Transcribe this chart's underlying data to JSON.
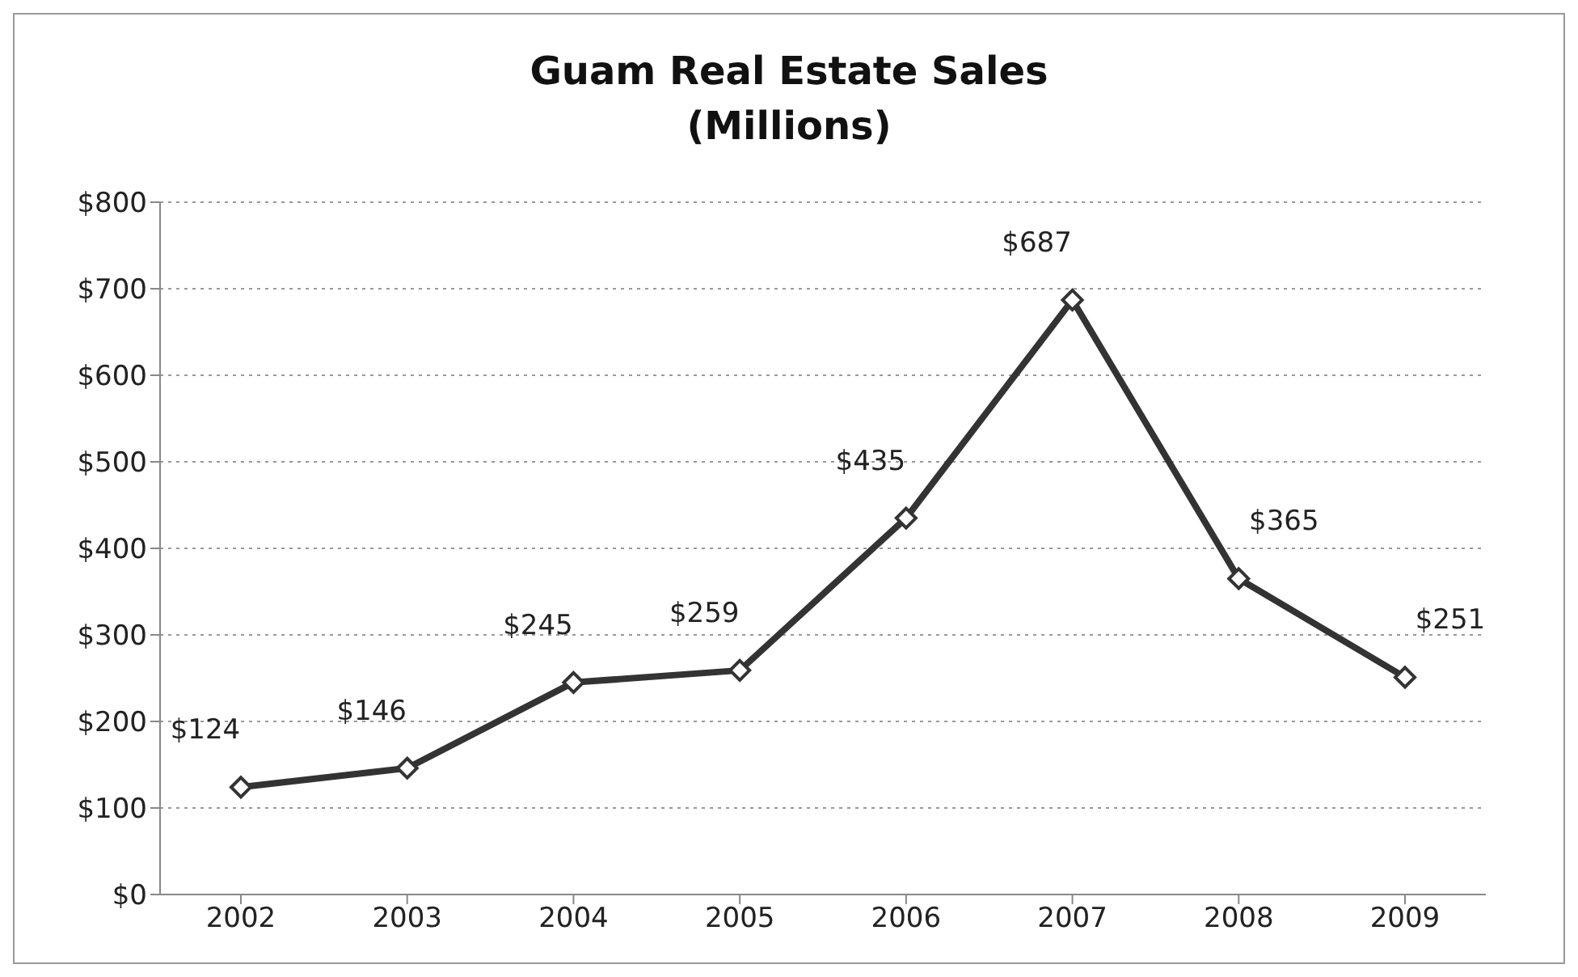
{
  "chart_data": {
    "type": "line",
    "title": "Guam Real Estate Sales\n(Millions)",
    "categories": [
      "2002",
      "2003",
      "2004",
      "2005",
      "2006",
      "2007",
      "2008",
      "2009"
    ],
    "values": [
      124,
      146,
      245,
      259,
      435,
      687,
      365,
      251
    ],
    "value_labels": [
      "$124",
      "$146",
      "$245",
      "$259",
      "$435",
      "$687",
      "$365",
      "$251"
    ],
    "color": "#333333",
    "marker": "diamond",
    "line_style": "solid",
    "grid": "y",
    "ylim": [
      0,
      800
    ],
    "yticks": [
      {
        "value": 0,
        "label": "$0"
      },
      {
        "value": 100,
        "label": "$100"
      },
      {
        "value": 200,
        "label": "$200"
      },
      {
        "value": 300,
        "label": "$300"
      },
      {
        "value": 400,
        "label": "$400"
      },
      {
        "value": 500,
        "label": "$500"
      },
      {
        "value": 600,
        "label": "$600"
      },
      {
        "value": 700,
        "label": "$700"
      },
      {
        "value": 800,
        "label": "$800"
      }
    ]
  }
}
